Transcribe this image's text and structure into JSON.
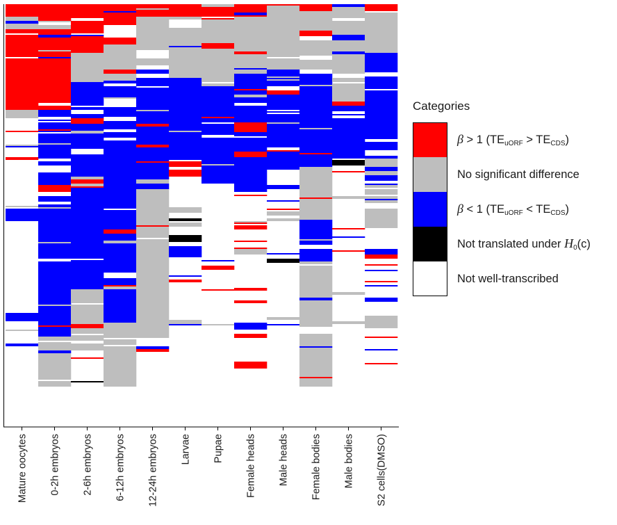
{
  "chart_data": {
    "type": "heatmap",
    "title": "",
    "xlabel": "",
    "ylabel": "",
    "categories": [
      "Mature oocytes",
      "0-2h embryos",
      "2-6h embryos",
      "6-12h embryos",
      "12-24h embryos",
      "Larvae",
      "Pupae",
      "Female heads",
      "Male heads",
      "Female bodies",
      "Male bodies",
      "S2 cells(DMSO)"
    ],
    "legend": {
      "title": "Categories",
      "placement": "right",
      "items": [
        {
          "key": "red",
          "color": "#ff0000",
          "beta": "β",
          "op": " > 1 (TE",
          "sub1": "uORF",
          "mid": " > TE",
          "sub2": "CDS",
          "close": ")"
        },
        {
          "key": "grey",
          "color": "#bebebe",
          "text": "No significant difference"
        },
        {
          "key": "blue",
          "color": "#0000ff",
          "beta": "β",
          "op": " < 1 (TE",
          "sub1": "uORF",
          "mid": " < TE",
          "sub2": "CDS",
          "close": ")"
        },
        {
          "key": "black",
          "color": "#000000",
          "pre": "Not translated under ",
          "h": "H",
          "hsub": "0",
          "post": "(c)"
        },
        {
          "key": "white",
          "color": "#ffffff",
          "text": "Not well-transcribed"
        }
      ]
    },
    "columns": [
      {
        "name": "Mature oocytes",
        "well_transcribed_fraction": 1.0,
        "segments": [
          {
            "cat": "red",
            "to": 0.03
          },
          {
            "cat": "grey",
            "to": 0.06
          },
          {
            "cat": "red",
            "to": 0.26
          },
          {
            "cat": "grey",
            "to": 0.31
          },
          {
            "cat": "white",
            "to": 1.0
          }
        ]
      },
      {
        "name": "0-2h embryos",
        "well_transcribed_fraction": 0.94,
        "segments": [
          {
            "cat": "red",
            "to": 0.015
          },
          {
            "cat": "grey",
            "to": 0.06
          },
          {
            "cat": "red",
            "to": 0.26
          },
          {
            "cat": "blue",
            "to": 0.82
          },
          {
            "cat": "grey",
            "to": 0.94
          },
          {
            "cat": "white",
            "to": 1.0
          }
        ]
      },
      {
        "name": "2-6h embryos",
        "well_transcribed_fraction": 0.94,
        "segments": [
          {
            "cat": "red",
            "to": 0.12
          },
          {
            "cat": "grey",
            "to": 0.19
          },
          {
            "cat": "blue",
            "to": 0.7
          },
          {
            "cat": "grey",
            "to": 0.85
          },
          {
            "cat": "white",
            "to": 1.0
          }
        ]
      },
      {
        "name": "6-12h embryos",
        "well_transcribed_fraction": 0.94,
        "segments": [
          {
            "cat": "red",
            "to": 0.1
          },
          {
            "cat": "grey",
            "to": 0.19
          },
          {
            "cat": "blue",
            "to": 0.78
          },
          {
            "cat": "grey",
            "to": 0.94
          },
          {
            "cat": "white",
            "to": 1.0
          }
        ]
      },
      {
        "name": "12-24h embryos",
        "well_transcribed_fraction": 0.94,
        "segments": [
          {
            "cat": "red",
            "to": 0.03
          },
          {
            "cat": "grey",
            "to": 0.16
          },
          {
            "cat": "blue",
            "to": 0.42
          },
          {
            "cat": "grey",
            "to": 0.82
          },
          {
            "cat": "white",
            "to": 1.0
          }
        ]
      },
      {
        "name": "Larvae",
        "well_transcribed_fraction": 0.8,
        "segments": [
          {
            "cat": "red",
            "to": 0.03
          },
          {
            "cat": "grey",
            "to": 0.18
          },
          {
            "cat": "blue",
            "to": 0.37
          },
          {
            "cat": "white",
            "to": 1.0
          }
        ]
      },
      {
        "name": "Pupae",
        "well_transcribed_fraction": 0.8,
        "segments": [
          {
            "cat": "red",
            "to": 0.03
          },
          {
            "cat": "grey",
            "to": 0.2
          },
          {
            "cat": "blue",
            "to": 0.44
          },
          {
            "cat": "white",
            "to": 1.0
          }
        ]
      },
      {
        "name": "Female heads",
        "well_transcribed_fraction": 0.88,
        "segments": [
          {
            "cat": "red",
            "to": 0.03
          },
          {
            "cat": "grey",
            "to": 0.17
          },
          {
            "cat": "blue",
            "to": 0.46
          },
          {
            "cat": "white",
            "to": 1.0
          }
        ]
      },
      {
        "name": "Male heads",
        "well_transcribed_fraction": 0.82,
        "segments": [
          {
            "cat": "red",
            "to": 0.025
          },
          {
            "cat": "grey",
            "to": 0.16
          },
          {
            "cat": "blue",
            "to": 0.41
          },
          {
            "cat": "white",
            "to": 1.0
          }
        ]
      },
      {
        "name": "Female bodies",
        "well_transcribed_fraction": 0.94,
        "segments": [
          {
            "cat": "red",
            "to": 0.015
          },
          {
            "cat": "grey",
            "to": 0.16
          },
          {
            "cat": "blue",
            "to": 0.4
          },
          {
            "cat": "grey",
            "to": 0.53
          },
          {
            "cat": "blue",
            "to": 0.63
          },
          {
            "cat": "grey",
            "to": 0.94
          },
          {
            "cat": "white",
            "to": 1.0
          }
        ]
      },
      {
        "name": "Male bodies",
        "well_transcribed_fraction": 0.88,
        "segments": [
          {
            "cat": "grey",
            "to": 0.24
          },
          {
            "cat": "blue",
            "to": 0.38
          },
          {
            "cat": "white",
            "to": 1.0
          }
        ]
      },
      {
        "name": "S2 cells(DMSO)",
        "well_transcribed_fraction": 0.9,
        "segments": [
          {
            "cat": "red",
            "to": 0.02
          },
          {
            "cat": "grey",
            "to": 0.12
          },
          {
            "cat": "blue",
            "to": 0.38
          },
          {
            "cat": "grey",
            "to": 0.55
          },
          {
            "cat": "white",
            "to": 1.0
          }
        ]
      }
    ]
  }
}
